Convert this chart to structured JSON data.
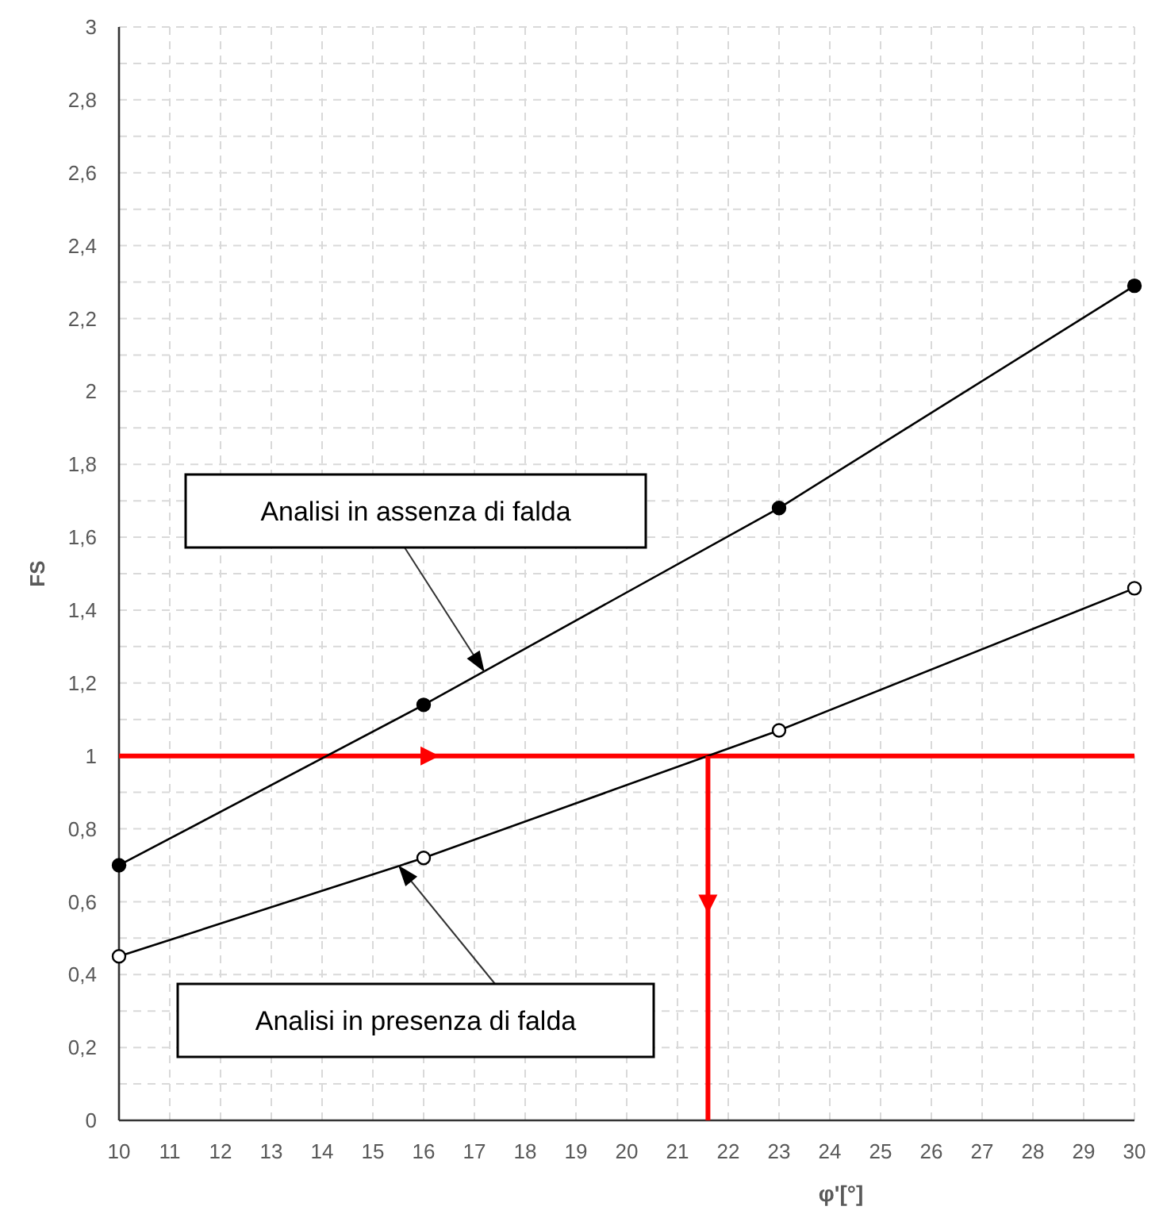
{
  "chart_data": {
    "type": "line",
    "xlabel": "φ'[°]",
    "ylabel": "FS",
    "xlim": [
      10,
      30
    ],
    "xticks": [
      10,
      11,
      12,
      13,
      14,
      15,
      16,
      17,
      18,
      19,
      20,
      21,
      22,
      23,
      24,
      25,
      26,
      27,
      28,
      29,
      30
    ],
    "ylim": [
      0,
      3
    ],
    "yticks": [
      {
        "value": 0,
        "label": "0"
      },
      {
        "value": 0.2,
        "label": "0,2"
      },
      {
        "value": 0.4,
        "label": "0,4"
      },
      {
        "value": 0.6,
        "label": "0,6"
      },
      {
        "value": 0.8,
        "label": "0,8"
      },
      {
        "value": 1,
        "label": "1"
      },
      {
        "value": 1.2,
        "label": "1,2"
      },
      {
        "value": 1.4,
        "label": "1,4"
      },
      {
        "value": 1.6,
        "label": "1,6"
      },
      {
        "value": 1.8,
        "label": "1,8"
      },
      {
        "value": 2,
        "label": "2"
      },
      {
        "value": 2.2,
        "label": "2,2"
      },
      {
        "value": 2.4,
        "label": "2,4"
      },
      {
        "value": 2.6,
        "label": "2,6"
      },
      {
        "value": 2.8,
        "label": "2,8"
      },
      {
        "value": 3,
        "label": "3"
      }
    ],
    "grid": true,
    "marker": "circle",
    "line_style": "solid",
    "series": [
      {
        "color": "#000000",
        "x": [
          10,
          16,
          23,
          30
        ],
        "values": [
          0.7,
          1.14,
          1.68,
          2.29
        ]
      },
      {
        "color": "#000000",
        "marker": "circle_open",
        "x": [
          10,
          16,
          23,
          30
        ],
        "values": [
          0.45,
          0.72,
          1.07,
          1.46
        ]
      },
      {
        "color": "#ff0000",
        "marker": "none",
        "x": [
          21.6,
          21.6
        ],
        "values": [
          1,
          0
        ]
      }
    ],
    "ref_lines": [
      {
        "axis": "y",
        "value": 1,
        "color": "#ff0000"
      }
    ],
    "annotations": [
      {
        "text": "Analisi in assenza di falda",
        "x": 17.2,
        "y": 1.23
      },
      {
        "text": "Analisi in presenza di falda",
        "x": 15.5,
        "y": 0.7
      }
    ]
  }
}
